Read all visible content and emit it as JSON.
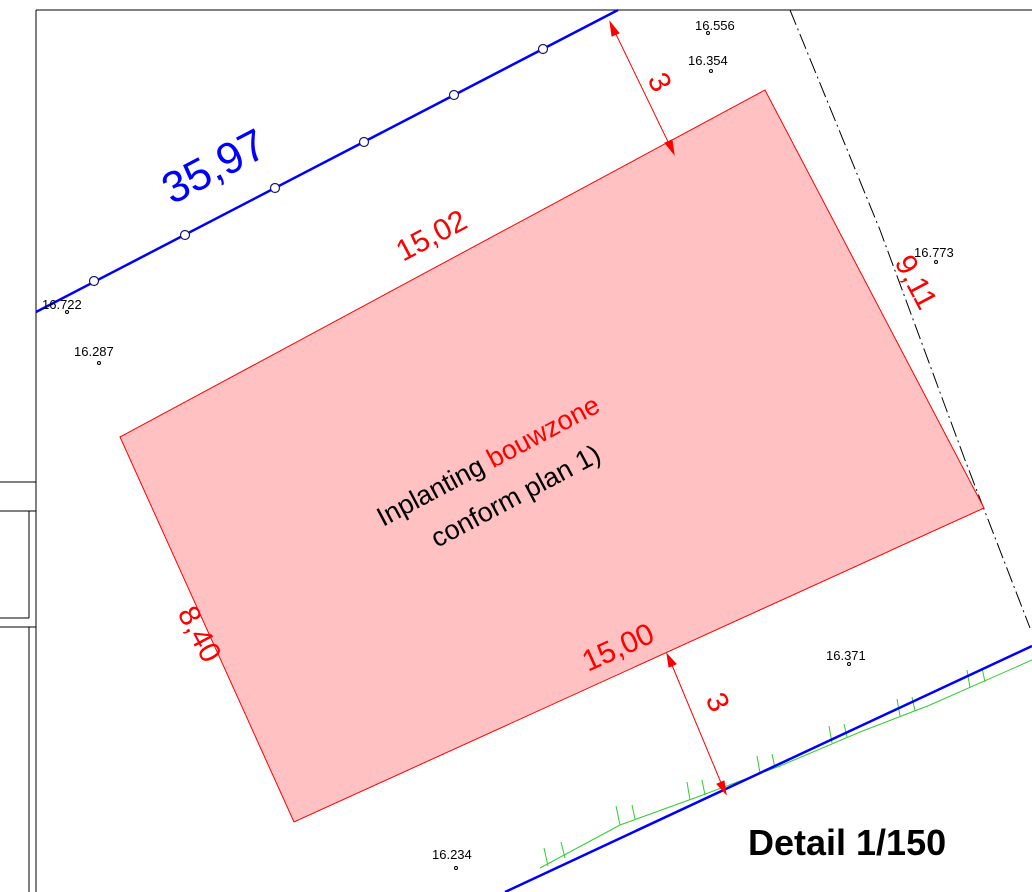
{
  "plot": {
    "front_boundary_length": "35,97",
    "building_zone": {
      "label_part1": "Inplanting ",
      "label_highlight": "bouwzone",
      "label_line2": "conform plan 1)",
      "fill_color": "#ffc1c1",
      "outline_color": "#ff0000",
      "dimension_top": "15,02",
      "dimension_bottom": "15,00",
      "dimension_left": "8,40",
      "dimension_right": "9,11"
    },
    "setback_top": "3",
    "setback_bottom": "3",
    "boundary_color": "#0000ff",
    "slope_color": "#00c000"
  },
  "spot_heights": [
    {
      "value": "16.556"
    },
    {
      "value": "16.354"
    },
    {
      "value": "16.773"
    },
    {
      "value": "16.722"
    },
    {
      "value": "16.287"
    },
    {
      "value": "16.371"
    },
    {
      "value": "16.234"
    }
  ],
  "scale_label": "Detail 1/150"
}
